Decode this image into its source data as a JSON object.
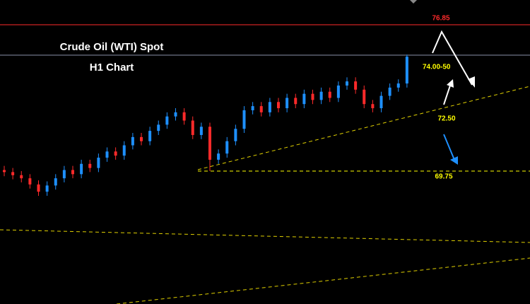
{
  "chart_data": {
    "type": "candlestick",
    "title": "Crude Oil (WTI) Spot",
    "subtitle": "H1 Chart",
    "up_color": "#1e90ff",
    "down_color": "#ff2a2a",
    "ylim": [
      63.3,
      78.05
    ],
    "open": [
      69.8,
      69.7,
      69.55,
      69.4,
      69.1,
      68.75,
      69.05,
      69.4,
      69.8,
      69.6,
      70.1,
      69.9,
      70.4,
      70.7,
      70.5,
      71.0,
      71.4,
      71.2,
      71.7,
      72.0,
      72.4,
      72.6,
      72.2,
      71.5,
      71.9,
      70.3,
      70.6,
      71.2,
      71.8,
      72.7,
      72.9,
      72.6,
      73.1,
      72.8,
      73.3,
      73.0,
      73.5,
      73.2,
      73.6,
      73.3,
      73.9,
      74.1,
      73.7,
      73.0,
      72.8,
      73.4,
      73.8,
      74.0
    ],
    "high": [
      70.0,
      69.9,
      69.75,
      69.6,
      69.3,
      69.25,
      69.6,
      70.0,
      70.0,
      70.3,
      70.3,
      70.6,
      70.9,
      70.9,
      71.2,
      71.6,
      71.6,
      71.9,
      72.2,
      72.6,
      72.8,
      72.8,
      72.4,
      72.1,
      72.1,
      70.8,
      71.4,
      72.0,
      72.9,
      73.1,
      73.1,
      73.3,
      73.3,
      73.5,
      73.5,
      73.7,
      73.7,
      73.8,
      73.8,
      74.1,
      74.3,
      74.3,
      73.9,
      73.2,
      73.6,
      74.0,
      74.2,
      75.4
    ],
    "low": [
      69.5,
      69.35,
      69.2,
      68.9,
      68.55,
      68.55,
      68.85,
      69.2,
      69.4,
      69.4,
      69.7,
      69.7,
      70.2,
      70.3,
      70.3,
      70.8,
      71.0,
      71.0,
      71.5,
      71.8,
      72.2,
      72.0,
      71.3,
      71.3,
      69.75,
      70.1,
      70.4,
      71.0,
      71.6,
      72.5,
      72.4,
      72.4,
      72.6,
      72.6,
      72.8,
      72.8,
      73.0,
      73.0,
      73.1,
      73.1,
      73.7,
      73.5,
      72.8,
      72.6,
      72.6,
      73.2,
      73.6,
      73.8
    ],
    "close": [
      69.7,
      69.55,
      69.4,
      69.1,
      68.75,
      69.05,
      69.4,
      69.8,
      69.6,
      70.1,
      69.9,
      70.4,
      70.7,
      70.5,
      71.0,
      71.4,
      71.2,
      71.7,
      72.0,
      72.4,
      72.6,
      72.2,
      71.5,
      71.9,
      70.3,
      70.6,
      71.2,
      71.8,
      72.7,
      72.9,
      72.6,
      73.1,
      72.8,
      73.3,
      73.0,
      73.5,
      73.2,
      73.6,
      73.3,
      73.9,
      74.1,
      73.7,
      73.0,
      72.8,
      73.4,
      73.8,
      74.0,
      75.3
    ],
    "levels": [
      {
        "value": 76.85,
        "color": "#ff2a2a"
      },
      {
        "value": 72.5,
        "label": "72.50",
        "color": "#ffff00"
      },
      {
        "value": 69.75,
        "color": "#ffff00"
      }
    ],
    "target_label": "74.00-50"
  }
}
